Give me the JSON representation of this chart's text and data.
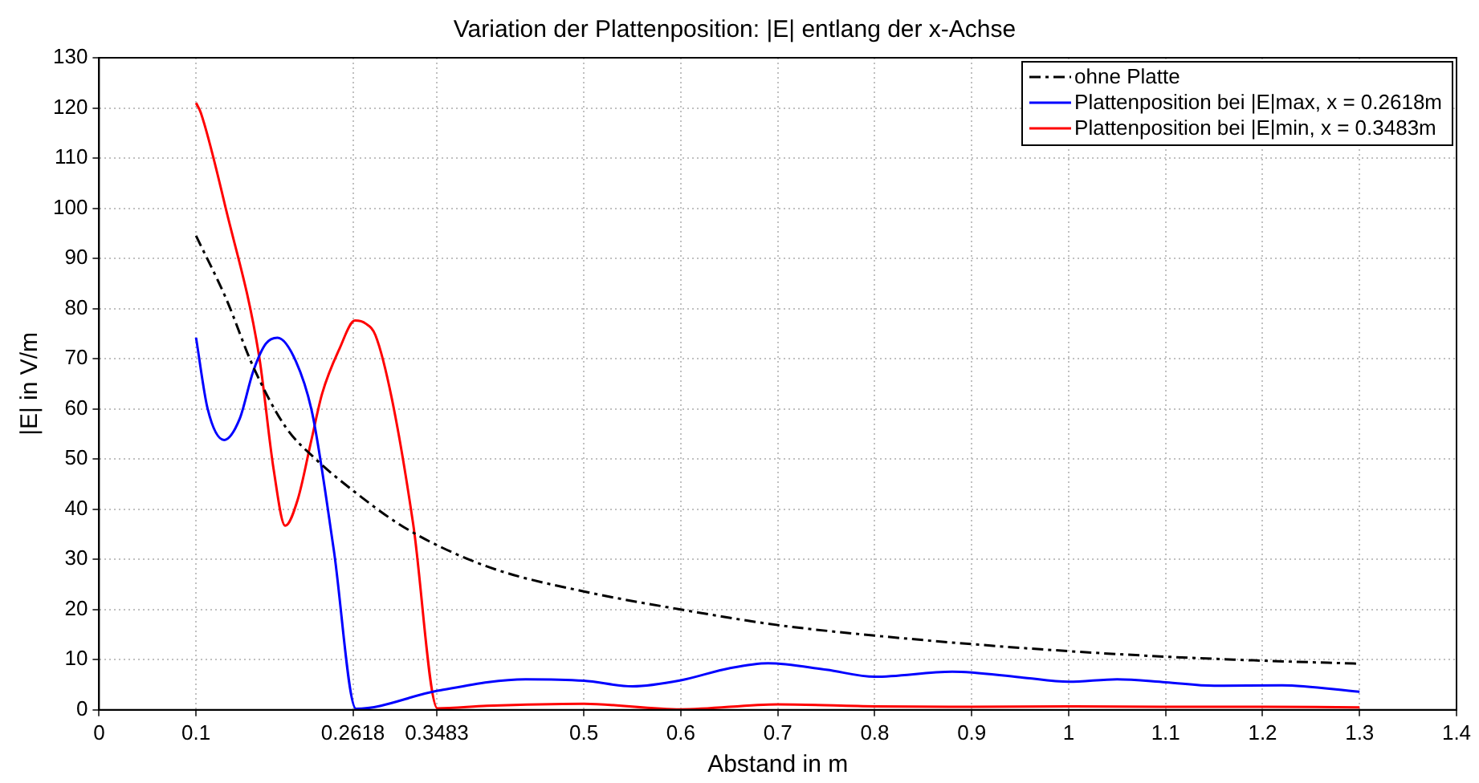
{
  "chart_data": {
    "type": "line",
    "title": "Variation der Plattenposition: |E| entlang der x-Achse",
    "xlabel": "Abstand in m",
    "ylabel": "|E| in V/m",
    "xlim": [
      0,
      1.4
    ],
    "xticks": [
      0,
      0.1,
      0.2618,
      0.3483,
      0.5,
      0.6,
      0.7,
      0.8,
      0.9,
      1,
      1.1,
      1.2,
      1.3,
      1.4
    ],
    "ylim": [
      0,
      130
    ],
    "yticks": [
      0,
      10,
      20,
      30,
      40,
      50,
      60,
      70,
      80,
      90,
      100,
      110,
      120,
      130
    ],
    "grid": true,
    "legend": "top right",
    "marker": "none",
    "series": [
      {
        "name": "ohne Platte",
        "color": "#000000",
        "line_style": "dashed",
        "x": [
          0.1,
          0.131,
          0.159,
          0.192,
          0.225,
          0.264,
          0.308,
          0.352,
          0.412,
          0.5,
          0.6,
          0.7,
          0.8,
          0.9,
          1.0,
          1.1,
          1.2,
          1.3
        ],
        "values": [
          94.5,
          82,
          68.4,
          56.5,
          49.7,
          43.4,
          37.2,
          32.5,
          27.8,
          23.6,
          20,
          16.9,
          14.8,
          13.1,
          11.7,
          10.6,
          9.8,
          9.2
        ]
      },
      {
        "name": "Plattenposition bei |E|max, x = 0.2618m",
        "color": "#0000ff",
        "line_style": "solid",
        "x": [
          0.1,
          0.112,
          0.129,
          0.145,
          0.159,
          0.172,
          0.184,
          0.203,
          0.22,
          0.242,
          0.265,
          0.349,
          0.44,
          0.5,
          0.55,
          0.6,
          0.65,
          0.69,
          0.75,
          0.8,
          0.88,
          0.95,
          1.0,
          1.05,
          1.1,
          1.15,
          1.22,
          1.3
        ],
        "values": [
          74.2,
          60,
          53.8,
          58,
          67.5,
          73,
          74.2,
          69.5,
          59,
          32,
          0.2,
          3.8,
          6.1,
          5.8,
          4.7,
          5.9,
          8.3,
          9.3,
          8,
          6.6,
          7.6,
          6.5,
          5.6,
          6.1,
          5.5,
          4.8,
          4.9,
          3.6
        ]
      },
      {
        "name": "Plattenposition bei |E|min, x = 0.3483m",
        "color": "#ff0000",
        "line_style": "solid",
        "x": [
          0.1,
          0.105,
          0.131,
          0.165,
          0.18,
          0.192,
          0.205,
          0.219,
          0.23,
          0.248,
          0.264,
          0.275,
          0.285,
          0.302,
          0.324,
          0.349,
          0.4,
          0.5,
          0.6,
          0.7,
          0.8,
          0.9,
          1.0,
          1.1,
          1.2,
          1.3
        ],
        "values": [
          121,
          119,
          99.7,
          70.6,
          48,
          36.7,
          42,
          53.8,
          63,
          72,
          77.6,
          77,
          74.7,
          62,
          37,
          0.3,
          0.8,
          1.2,
          0.1,
          1.1,
          0.7,
          0.6,
          0.7,
          0.6,
          0.6,
          0.5
        ]
      }
    ]
  }
}
